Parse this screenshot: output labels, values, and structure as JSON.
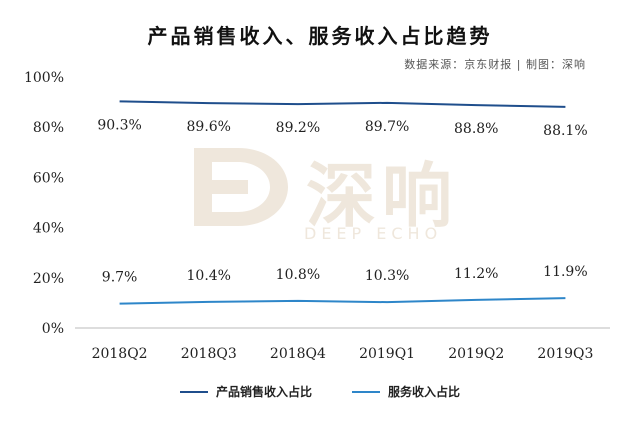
{
  "chart_data": {
    "type": "line",
    "title": "产品销售收入、服务收入占比趋势",
    "source": "数据来源：京东财报 | 制图：深响",
    "categories": [
      "2018Q2",
      "2018Q3",
      "2018Q4",
      "2019Q1",
      "2019Q2",
      "2019Q3"
    ],
    "ylim": [
      0,
      100
    ],
    "yticks": [
      "0%",
      "20%",
      "40%",
      "60%",
      "80%",
      "100%"
    ],
    "grid": false,
    "legend_position": "bottom",
    "series": [
      {
        "name": "产品销售收入占比",
        "values": [
          90.3,
          89.6,
          89.2,
          89.7,
          88.8,
          88.1
        ],
        "labels": [
          "90.3%",
          "89.6%",
          "89.2%",
          "89.7%",
          "88.8%",
          "88.1%"
        ],
        "color": "#1f4e8c"
      },
      {
        "name": "服务收入占比",
        "values": [
          9.7,
          10.4,
          10.8,
          10.3,
          11.2,
          11.9
        ],
        "labels": [
          "9.7%",
          "10.4%",
          "10.8%",
          "10.3%",
          "11.2%",
          "11.9%"
        ],
        "color": "#2e86c9"
      }
    ]
  },
  "watermark": {
    "logo_text": "深响",
    "subtitle": "DEEP ECHO"
  }
}
